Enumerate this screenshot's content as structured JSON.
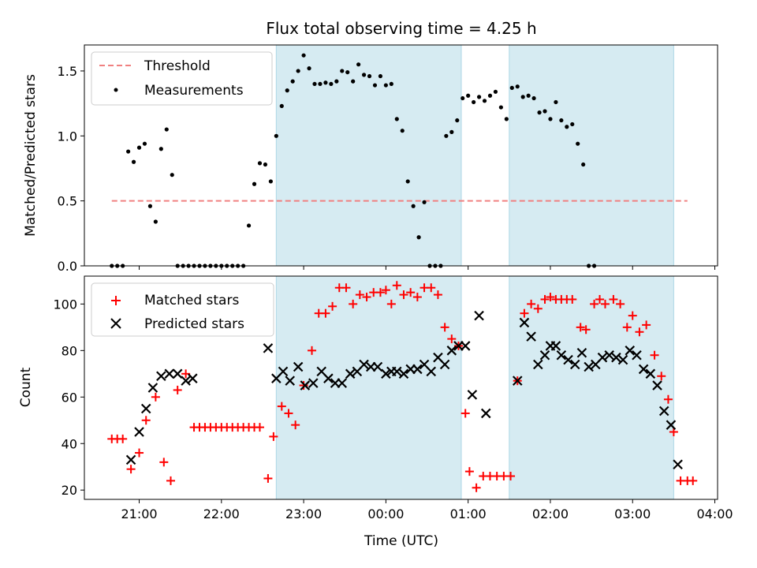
{
  "chart_data": [
    {
      "type": "scatter",
      "title": "Flux total observing time = 4.25 h",
      "xlabel": "",
      "ylabel": "Matched/Predicted stars",
      "ylim": [
        0,
        1.7
      ],
      "yticks": [
        "0.0",
        "0.5",
        "1.0",
        "1.5"
      ],
      "legend": {
        "placement": "upper-left",
        "entries": [
          "Threshold",
          "Measurements"
        ]
      },
      "shaded_intervals": [
        [
          "22:40",
          "00:55"
        ],
        [
          "01:30",
          "03:30"
        ]
      ],
      "threshold": {
        "name": "Threshold",
        "value": 0.5,
        "x_range": [
          "20:40",
          "03:40"
        ],
        "color": "#f08080"
      },
      "series": [
        {
          "name": "Measurements",
          "color": "#000000",
          "points": [
            [
              "20:40",
              0
            ],
            [
              "20:44",
              0
            ],
            [
              "20:48",
              0
            ],
            [
              "20:52",
              0.88
            ],
            [
              "20:56",
              0.8
            ],
            [
              "21:00",
              0.91
            ],
            [
              "21:04",
              0.94
            ],
            [
              "21:08",
              0.46
            ],
            [
              "21:12",
              0.34
            ],
            [
              "21:16",
              0.9
            ],
            [
              "21:20",
              1.05
            ],
            [
              "21:24",
              0.7
            ],
            [
              "21:28",
              0
            ],
            [
              "21:32",
              0
            ],
            [
              "21:36",
              0
            ],
            [
              "21:40",
              0
            ],
            [
              "21:44",
              0
            ],
            [
              "21:48",
              0
            ],
            [
              "21:52",
              0
            ],
            [
              "21:56",
              0
            ],
            [
              "22:00",
              0
            ],
            [
              "22:04",
              0
            ],
            [
              "22:08",
              0
            ],
            [
              "22:12",
              0
            ],
            [
              "22:16",
              0
            ],
            [
              "22:20",
              0.31
            ],
            [
              "22:24",
              0.63
            ],
            [
              "22:28",
              0.79
            ],
            [
              "22:32",
              0.78
            ],
            [
              "22:36",
              0.65
            ],
            [
              "22:40",
              1.0
            ],
            [
              "22:44",
              1.23
            ],
            [
              "22:48",
              1.35
            ],
            [
              "22:52",
              1.42
            ],
            [
              "22:56",
              1.5
            ],
            [
              "23:00",
              1.62
            ],
            [
              "23:04",
              1.52
            ],
            [
              "23:08",
              1.4
            ],
            [
              "23:12",
              1.4
            ],
            [
              "23:16",
              1.41
            ],
            [
              "23:20",
              1.4
            ],
            [
              "23:24",
              1.42
            ],
            [
              "23:28",
              1.5
            ],
            [
              "23:32",
              1.49
            ],
            [
              "23:36",
              1.42
            ],
            [
              "23:40",
              1.55
            ],
            [
              "23:44",
              1.47
            ],
            [
              "23:48",
              1.46
            ],
            [
              "23:52",
              1.39
            ],
            [
              "23:56",
              1.46
            ],
            [
              "00:00",
              1.39
            ],
            [
              "00:04",
              1.4
            ],
            [
              "00:08",
              1.13
            ],
            [
              "00:12",
              1.04
            ],
            [
              "00:16",
              0.65
            ],
            [
              "00:20",
              0.46
            ],
            [
              "00:24",
              0.22
            ],
            [
              "00:28",
              0.49
            ],
            [
              "00:32",
              0
            ],
            [
              "00:36",
              0
            ],
            [
              "00:40",
              0
            ],
            [
              "00:44",
              1.0
            ],
            [
              "00:48",
              1.03
            ],
            [
              "00:52",
              1.12
            ],
            [
              "00:56",
              1.29
            ],
            [
              "01:00",
              1.31
            ],
            [
              "01:04",
              1.26
            ],
            [
              "01:08",
              1.3
            ],
            [
              "01:12",
              1.27
            ],
            [
              "01:16",
              1.31
            ],
            [
              "01:20",
              1.34
            ],
            [
              "01:24",
              1.22
            ],
            [
              "01:28",
              1.13
            ],
            [
              "01:32",
              1.37
            ],
            [
              "01:36",
              1.38
            ],
            [
              "01:40",
              1.3
            ],
            [
              "01:44",
              1.31
            ],
            [
              "01:48",
              1.29
            ],
            [
              "01:52",
              1.18
            ],
            [
              "01:56",
              1.19
            ],
            [
              "02:00",
              1.13
            ],
            [
              "02:04",
              1.26
            ],
            [
              "02:08",
              1.12
            ],
            [
              "02:12",
              1.07
            ],
            [
              "02:16",
              1.09
            ],
            [
              "02:20",
              0.94
            ],
            [
              "02:24",
              0.78
            ],
            [
              "02:28",
              0
            ],
            [
              "02:32",
              0
            ]
          ]
        }
      ]
    },
    {
      "type": "scatter",
      "title": "",
      "xlabel": "Time (UTC)",
      "ylabel": "Count",
      "ylim": [
        16,
        112
      ],
      "yticks": [
        "20",
        "40",
        "60",
        "80",
        "100"
      ],
      "xticks": [
        "21:00",
        "22:00",
        "23:00",
        "00:00",
        "01:00",
        "02:00",
        "03:00",
        "04:00"
      ],
      "xlim": [
        "20:20",
        "04:02"
      ],
      "legend": {
        "placement": "upper-left",
        "entries": [
          "Matched stars",
          "Predicted stars"
        ]
      },
      "shaded_intervals": [
        [
          "22:40",
          "00:55"
        ],
        [
          "01:30",
          "03:30"
        ]
      ],
      "series": [
        {
          "name": "Matched stars",
          "color": "#ff0000",
          "marker": "plus",
          "points": [
            [
              "20:40",
              42
            ],
            [
              "20:44",
              42
            ],
            [
              "20:48",
              42
            ],
            [
              "20:54",
              29
            ],
            [
              "21:00",
              36
            ],
            [
              "21:05",
              50
            ],
            [
              "21:12",
              60
            ],
            [
              "21:18",
              32
            ],
            [
              "21:23",
              24
            ],
            [
              "21:28",
              63
            ],
            [
              "21:34",
              70
            ],
            [
              "21:40",
              47
            ],
            [
              "21:44",
              47
            ],
            [
              "21:48",
              47
            ],
            [
              "21:52",
              47
            ],
            [
              "21:56",
              47
            ],
            [
              "22:00",
              47
            ],
            [
              "22:04",
              47
            ],
            [
              "22:08",
              47
            ],
            [
              "22:12",
              47
            ],
            [
              "22:16",
              47
            ],
            [
              "22:20",
              47
            ],
            [
              "22:24",
              47
            ],
            [
              "22:28",
              47
            ],
            [
              "22:34",
              25
            ],
            [
              "22:38",
              43
            ],
            [
              "22:44",
              56
            ],
            [
              "22:49",
              53
            ],
            [
              "22:54",
              48
            ],
            [
              "23:00",
              65
            ],
            [
              "23:06",
              80
            ],
            [
              "23:11",
              96
            ],
            [
              "23:16",
              96
            ],
            [
              "23:21",
              99
            ],
            [
              "23:26",
              107
            ],
            [
              "23:31",
              107
            ],
            [
              "23:36",
              100
            ],
            [
              "23:41",
              104
            ],
            [
              "23:46",
              103
            ],
            [
              "23:51",
              105
            ],
            [
              "23:56",
              105
            ],
            [
              "00:00",
              106
            ],
            [
              "00:04",
              100
            ],
            [
              "00:08",
              108
            ],
            [
              "00:13",
              104
            ],
            [
              "00:18",
              105
            ],
            [
              "00:23",
              103
            ],
            [
              "00:28",
              107
            ],
            [
              "00:33",
              107
            ],
            [
              "00:38",
              104
            ],
            [
              "00:43",
              90
            ],
            [
              "00:48",
              85
            ],
            [
              "00:53",
              82
            ],
            [
              "00:58",
              53
            ],
            [
              "01:01",
              28
            ],
            [
              "01:06",
              21
            ],
            [
              "01:11",
              26
            ],
            [
              "01:16",
              26
            ],
            [
              "01:21",
              26
            ],
            [
              "01:26",
              26
            ],
            [
              "01:31",
              26
            ],
            [
              "01:36",
              67
            ],
            [
              "01:41",
              96
            ],
            [
              "01:46",
              100
            ],
            [
              "01:51",
              98
            ],
            [
              "01:56",
              102
            ],
            [
              "02:00",
              103
            ],
            [
              "02:04",
              102
            ],
            [
              "02:08",
              102
            ],
            [
              "02:12",
              102
            ],
            [
              "02:16",
              102
            ],
            [
              "02:22",
              90
            ],
            [
              "02:26",
              89
            ],
            [
              "02:32",
              100
            ],
            [
              "02:36",
              102
            ],
            [
              "02:40",
              100
            ],
            [
              "02:46",
              102
            ],
            [
              "02:51",
              100
            ],
            [
              "02:56",
              90
            ],
            [
              "03:00",
              95
            ],
            [
              "03:05",
              88
            ],
            [
              "03:10",
              91
            ],
            [
              "03:16",
              78
            ],
            [
              "03:21",
              69
            ],
            [
              "03:26",
              59
            ],
            [
              "03:30",
              45
            ],
            [
              "03:35",
              24
            ],
            [
              "03:40",
              24
            ],
            [
              "03:44",
              24
            ]
          ]
        },
        {
          "name": "Predicted stars",
          "color": "#000000",
          "marker": "x",
          "points": [
            [
              "20:54",
              33
            ],
            [
              "21:00",
              45
            ],
            [
              "21:05",
              55
            ],
            [
              "21:10",
              64
            ],
            [
              "21:16",
              69
            ],
            [
              "21:22",
              70
            ],
            [
              "21:28",
              70
            ],
            [
              "21:34",
              67
            ],
            [
              "21:39",
              68
            ],
            [
              "22:34",
              81
            ],
            [
              "22:40",
              68
            ],
            [
              "22:45",
              71
            ],
            [
              "22:50",
              67
            ],
            [
              "22:56",
              73
            ],
            [
              "23:01",
              65
            ],
            [
              "23:07",
              66
            ],
            [
              "23:13",
              71
            ],
            [
              "23:18",
              68
            ],
            [
              "23:23",
              66
            ],
            [
              "23:28",
              66
            ],
            [
              "23:34",
              70
            ],
            [
              "23:39",
              71
            ],
            [
              "23:44",
              74
            ],
            [
              "23:49",
              73
            ],
            [
              "23:54",
              73
            ],
            [
              "00:00",
              70
            ],
            [
              "00:04",
              71
            ],
            [
              "00:08",
              71
            ],
            [
              "00:13",
              70
            ],
            [
              "00:18",
              72
            ],
            [
              "00:23",
              72
            ],
            [
              "00:28",
              74
            ],
            [
              "00:33",
              71
            ],
            [
              "00:38",
              77
            ],
            [
              "00:43",
              74
            ],
            [
              "00:48",
              80
            ],
            [
              "00:53",
              82
            ],
            [
              "00:58",
              82
            ],
            [
              "01:03",
              61
            ],
            [
              "01:08",
              95
            ],
            [
              "01:13",
              53
            ],
            [
              "01:36",
              67
            ],
            [
              "01:41",
              92
            ],
            [
              "01:46",
              86
            ],
            [
              "01:51",
              74
            ],
            [
              "01:56",
              78
            ],
            [
              "02:00",
              82
            ],
            [
              "02:04",
              82
            ],
            [
              "02:08",
              78
            ],
            [
              "02:13",
              76
            ],
            [
              "02:18",
              74
            ],
            [
              "02:23",
              79
            ],
            [
              "02:28",
              73
            ],
            [
              "02:33",
              74
            ],
            [
              "02:38",
              77
            ],
            [
              "02:43",
              78
            ],
            [
              "02:48",
              77
            ],
            [
              "02:53",
              76
            ],
            [
              "02:58",
              80
            ],
            [
              "03:03",
              78
            ],
            [
              "03:08",
              72
            ],
            [
              "03:13",
              70
            ],
            [
              "03:18",
              65
            ],
            [
              "03:23",
              54
            ],
            [
              "03:28",
              48
            ],
            [
              "03:33",
              31
            ]
          ]
        }
      ]
    }
  ]
}
